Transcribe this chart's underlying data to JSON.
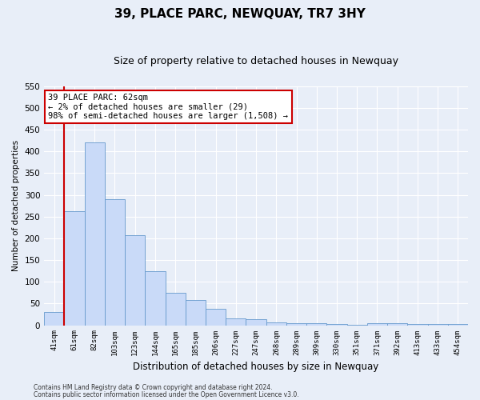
{
  "title": "39, PLACE PARC, NEWQUAY, TR7 3HY",
  "subtitle": "Size of property relative to detached houses in Newquay",
  "xlabel": "Distribution of detached houses by size in Newquay",
  "ylabel": "Number of detached properties",
  "categories": [
    "41sqm",
    "61sqm",
    "82sqm",
    "103sqm",
    "123sqm",
    "144sqm",
    "165sqm",
    "185sqm",
    "206sqm",
    "227sqm",
    "247sqm",
    "268sqm",
    "289sqm",
    "309sqm",
    "330sqm",
    "351sqm",
    "371sqm",
    "392sqm",
    "413sqm",
    "433sqm",
    "454sqm"
  ],
  "values": [
    30,
    263,
    420,
    290,
    207,
    125,
    75,
    58,
    38,
    15,
    13,
    6,
    5,
    4,
    2,
    1,
    5,
    5,
    3,
    3,
    3
  ],
  "bar_color": "#c9daf8",
  "bar_edge_color": "#6699cc",
  "highlight_line_color": "#cc0000",
  "highlight_bar_index": 1,
  "ylim": [
    0,
    550
  ],
  "yticks": [
    0,
    50,
    100,
    150,
    200,
    250,
    300,
    350,
    400,
    450,
    500,
    550
  ],
  "annotation_title": "39 PLACE PARC: 62sqm",
  "annotation_line1": "← 2% of detached houses are smaller (29)",
  "annotation_line2": "98% of semi-detached houses are larger (1,508) →",
  "annotation_box_facecolor": "#ffffff",
  "annotation_box_edgecolor": "#cc0000",
  "footer_line1": "Contains HM Land Registry data © Crown copyright and database right 2024.",
  "footer_line2": "Contains public sector information licensed under the Open Government Licence v3.0.",
  "background_color": "#e8eef8",
  "plot_background": "#e8eef8",
  "grid_color": "#ffffff",
  "title_fontsize": 11,
  "subtitle_fontsize": 9
}
